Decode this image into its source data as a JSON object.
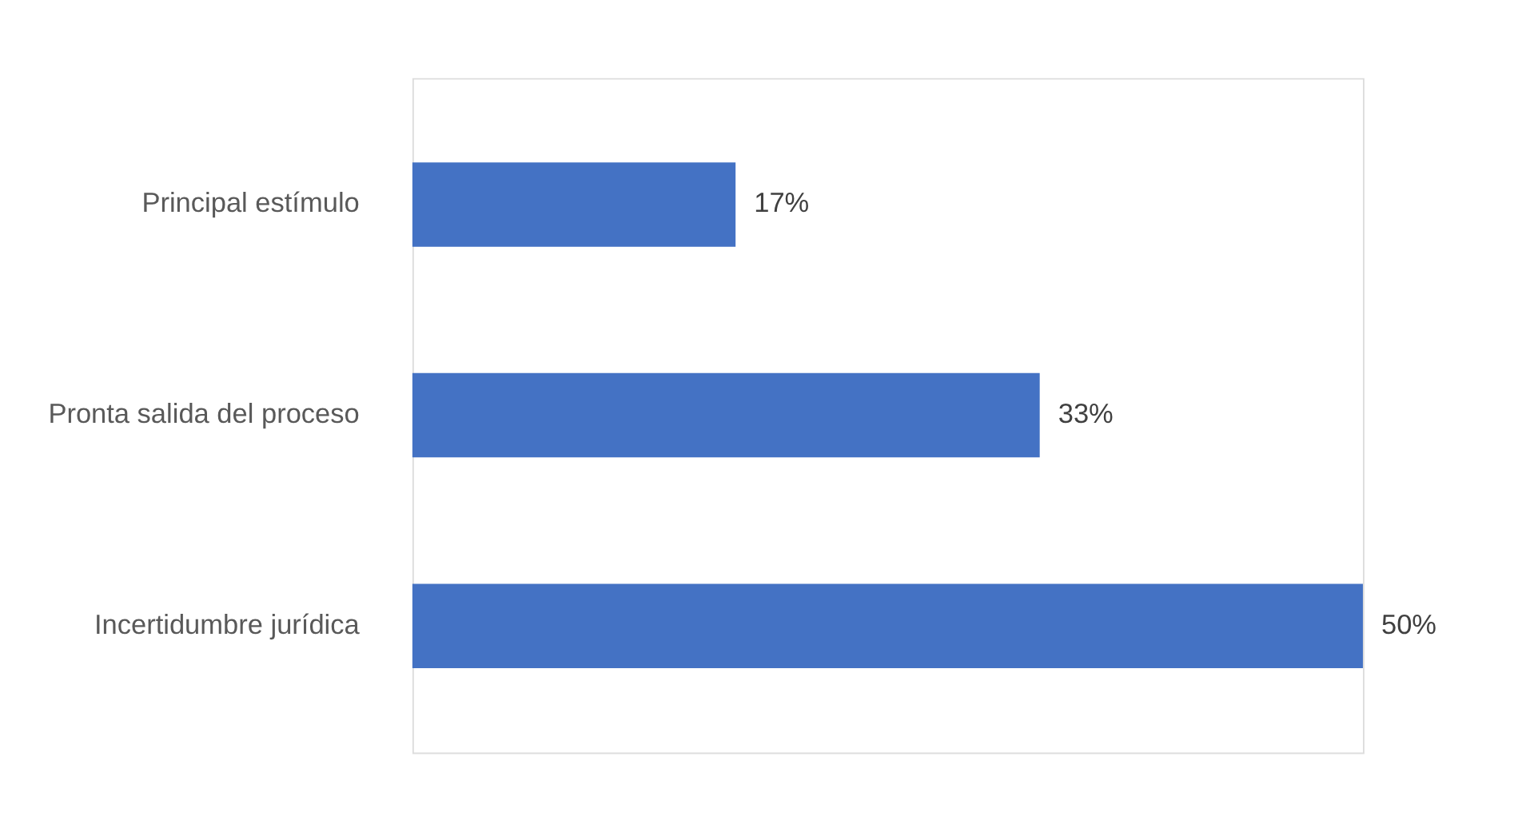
{
  "chart_data": {
    "type": "bar",
    "orientation": "horizontal",
    "categories": [
      "Principal estímulo",
      "Pronta salida del proceso",
      "Incertidumbre jurídica"
    ],
    "values": [
      17,
      33,
      50
    ],
    "value_labels": [
      "17%",
      "33%",
      "50%"
    ],
    "color": "#4472c4"
  }
}
